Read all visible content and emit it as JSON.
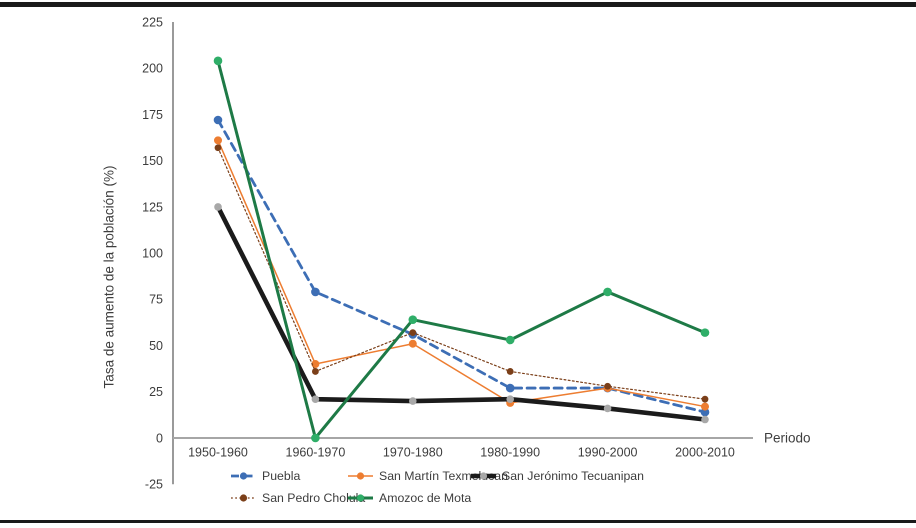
{
  "chart_data": {
    "type": "line",
    "title": "",
    "xlabel": "Periodo",
    "ylabel": "Tasa de aumento de la población (%)",
    "categories": [
      "1950-1960",
      "1960-1970",
      "1970-1980",
      "1980-1990",
      "1990-2000",
      "2000-2010"
    ],
    "ylim": [
      -25,
      225
    ],
    "ytick_step": 25,
    "yticks": [
      225,
      200,
      175,
      150,
      125,
      100,
      75,
      50,
      25,
      0,
      -25
    ],
    "grid": false,
    "legend_position": "bottom",
    "series": [
      {
        "name": "Puebla",
        "color": "#3d6eb5",
        "marker_color": "#3d6eb5",
        "style": "dashed",
        "line_width": 2.8,
        "marker_radius": 4.3,
        "values": [
          172,
          79,
          56,
          27,
          27,
          14
        ]
      },
      {
        "name": "San Martín Texmelucan",
        "color": "#ed7d31",
        "marker_color": "#ed7d31",
        "style": "solid",
        "line_width": 1.5,
        "marker_radius": 4,
        "values": [
          161,
          40,
          51,
          19,
          27,
          17
        ]
      },
      {
        "name": "San Jerónimo Tecuanipan",
        "color": "#1b1b1b",
        "marker_color": "#a8a8a8",
        "style": "solid",
        "line_width": 4.6,
        "marker_radius": 3.8,
        "values": [
          125,
          21,
          20,
          21,
          16,
          10
        ]
      },
      {
        "name": "San Pedro Cholula",
        "color": "#7b3f19",
        "marker_color": "#7b3f19",
        "style": "dotted",
        "line_width": 1.2,
        "marker_radius": 3.4,
        "values": [
          157,
          36,
          57,
          36,
          28,
          21
        ]
      },
      {
        "name": "Amozoc de Mota",
        "color": "#1e7a46",
        "marker_color": "#2fae68",
        "style": "solid",
        "line_width": 3,
        "marker_radius": 4.3,
        "values": [
          204,
          0,
          64,
          53,
          79,
          57
        ]
      }
    ],
    "axis_colors": {
      "y_axis_line": "#808080",
      "x_axis_line": "#a6a6a6",
      "text": "#3d3d3d"
    }
  }
}
